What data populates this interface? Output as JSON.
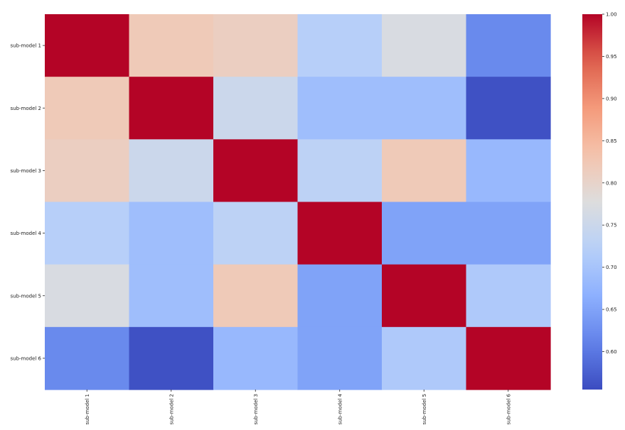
{
  "chart_data": {
    "type": "heatmap",
    "title": "",
    "xlabel": "",
    "ylabel": "",
    "x_categories": [
      "sub-model 1",
      "sub-model 2",
      "sub-model 3",
      "sub-model 4",
      "sub-model 5",
      "sub-model 6"
    ],
    "y_categories": [
      "sub-model 1",
      "sub-model 2",
      "sub-model 3",
      "sub-model 4",
      "sub-model 5",
      "sub-model 6"
    ],
    "values": [
      [
        1.0,
        0.82,
        0.81,
        0.72,
        0.77,
        0.62
      ],
      [
        0.82,
        1.0,
        0.75,
        0.69,
        0.69,
        0.56
      ],
      [
        0.81,
        0.75,
        1.0,
        0.73,
        0.82,
        0.68
      ],
      [
        0.72,
        0.69,
        0.73,
        1.0,
        0.65,
        0.65
      ],
      [
        0.77,
        0.69,
        0.82,
        0.65,
        1.0,
        0.71
      ],
      [
        0.62,
        0.56,
        0.68,
        0.65,
        0.71,
        1.0
      ]
    ],
    "colormap": "coolwarm",
    "vmin": 0.555,
    "vmax": 1.0,
    "colorbar": {
      "placement": "right",
      "ticks": [
        0.6,
        0.65,
        0.7,
        0.75,
        0.8,
        0.85,
        0.9,
        0.95,
        1.0
      ],
      "tick_labels": [
        "0.60",
        "0.65",
        "0.70",
        "0.75",
        "0.80",
        "0.85",
        "0.90",
        "0.95",
        "1.00"
      ]
    }
  }
}
